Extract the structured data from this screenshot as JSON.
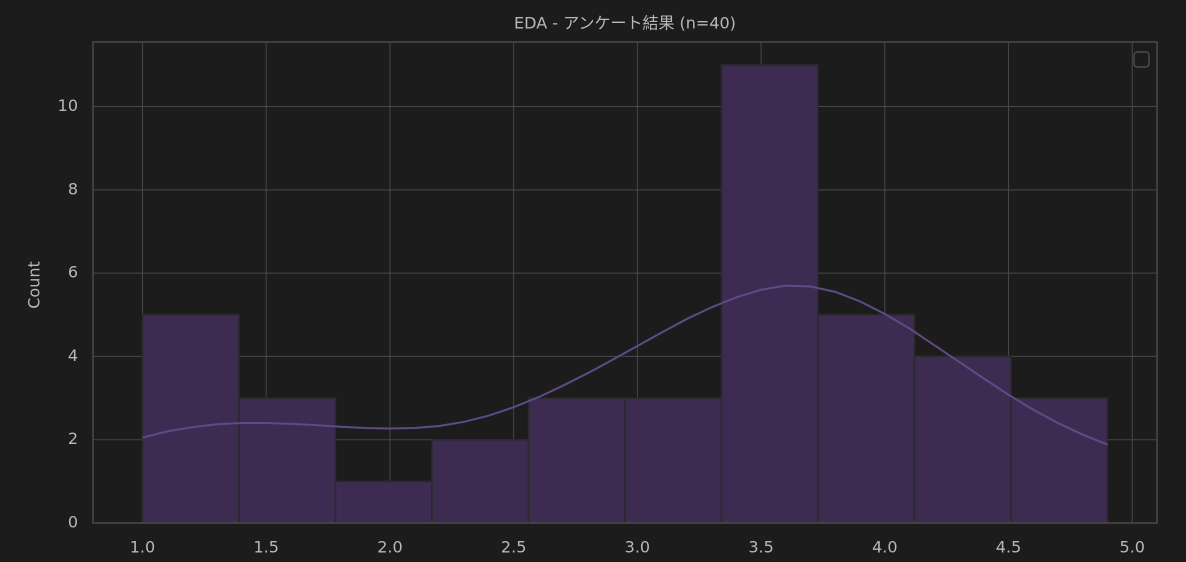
{
  "chart_data": {
    "type": "histogram",
    "title": "EDA - アンケート結果 (n=40)",
    "y_label": "Count",
    "bins": [
      1.0,
      1.39,
      1.78,
      2.17,
      2.56,
      2.95,
      3.34,
      3.73,
      4.12,
      4.51,
      4.9
    ],
    "values": [
      5,
      3,
      1,
      2,
      3,
      3,
      11,
      5,
      4,
      3
    ],
    "color": "#3d2b52",
    "kde": {
      "color": "#5f4a86",
      "x": [
        1.0,
        1.1,
        1.2,
        1.3,
        1.4,
        1.5,
        1.6,
        1.7,
        1.8,
        1.9,
        2.0,
        2.1,
        2.2,
        2.3,
        2.4,
        2.5,
        2.6,
        2.7,
        2.8,
        2.9,
        3.0,
        3.1,
        3.2,
        3.3,
        3.4,
        3.5,
        3.6,
        3.7,
        3.8,
        3.9,
        4.0,
        4.1,
        4.2,
        4.3,
        4.4,
        4.5,
        4.6,
        4.7,
        4.8,
        4.9
      ],
      "y": [
        2.05,
        2.2,
        2.3,
        2.37,
        2.4,
        2.4,
        2.38,
        2.35,
        2.31,
        2.28,
        2.27,
        2.28,
        2.33,
        2.43,
        2.58,
        2.78,
        3.02,
        3.3,
        3.6,
        3.92,
        4.25,
        4.58,
        4.9,
        5.18,
        5.42,
        5.6,
        5.7,
        5.68,
        5.55,
        5.32,
        5.02,
        4.67,
        4.27,
        3.87,
        3.47,
        3.08,
        2.72,
        2.4,
        2.12,
        1.88
      ]
    },
    "xlim": [
      0.8,
      5.1
    ],
    "ylim": [
      0,
      11.55
    ],
    "xticks": [
      {
        "value": 1.0,
        "label": "1.0"
      },
      1.5,
      {
        "value": 2.0,
        "label": "2.0"
      },
      2.5,
      {
        "value": 3.0,
        "label": "3.0"
      },
      3.5,
      {
        "value": 4.0,
        "label": "4.0"
      },
      4.5,
      {
        "value": 5.0,
        "label": "5.0"
      }
    ],
    "yticks": [
      0,
      2,
      4,
      6,
      8,
      10
    ],
    "grid": true
  }
}
